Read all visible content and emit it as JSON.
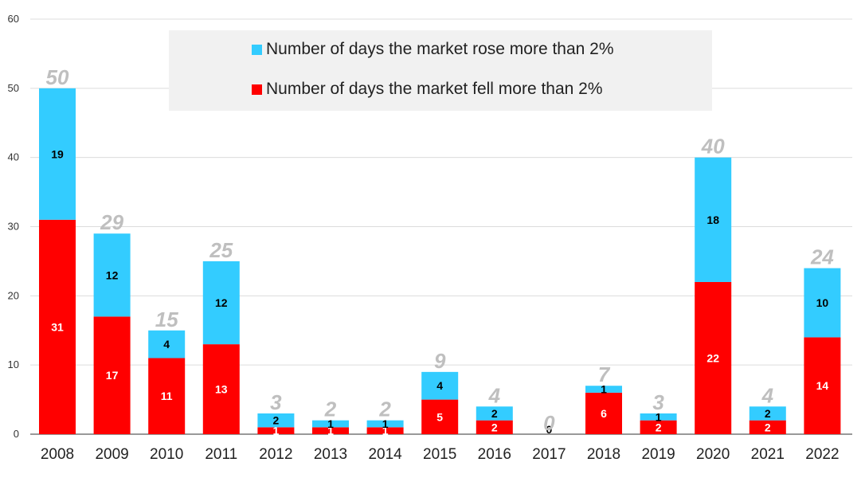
{
  "chart_data": {
    "type": "bar",
    "stacked": true,
    "categories": [
      "2008",
      "2009",
      "2010",
      "2011",
      "2012",
      "2013",
      "2014",
      "2015",
      "2016",
      "2017",
      "2018",
      "2019",
      "2020",
      "2021",
      "2022"
    ],
    "series": [
      {
        "name": "Number of days the market fell more than 2%",
        "color": "#ff0000",
        "label_color": "#ffffff",
        "values": [
          31,
          17,
          11,
          13,
          1,
          1,
          1,
          5,
          2,
          0,
          6,
          2,
          22,
          2,
          14
        ]
      },
      {
        "name": "Number of days the market rose more than 2%",
        "color": "#33ccff",
        "label_color": "#000000",
        "values": [
          19,
          12,
          4,
          12,
          2,
          1,
          1,
          4,
          2,
          0,
          1,
          1,
          18,
          2,
          10
        ]
      }
    ],
    "totals": [
      50,
      29,
      15,
      25,
      3,
      2,
      2,
      9,
      4,
      0,
      7,
      3,
      40,
      4,
      24
    ],
    "zero_label": "0",
    "total_label_color": "#bfbfbf",
    "yticks": [
      0,
      10,
      20,
      30,
      40,
      50,
      60
    ],
    "ylim": [
      0,
      60
    ],
    "grid": true,
    "legend_position": "top"
  },
  "legend": {
    "rose": "Number of days the market rose more than 2%",
    "fell": "Number of days the market fell more than 2%"
  }
}
